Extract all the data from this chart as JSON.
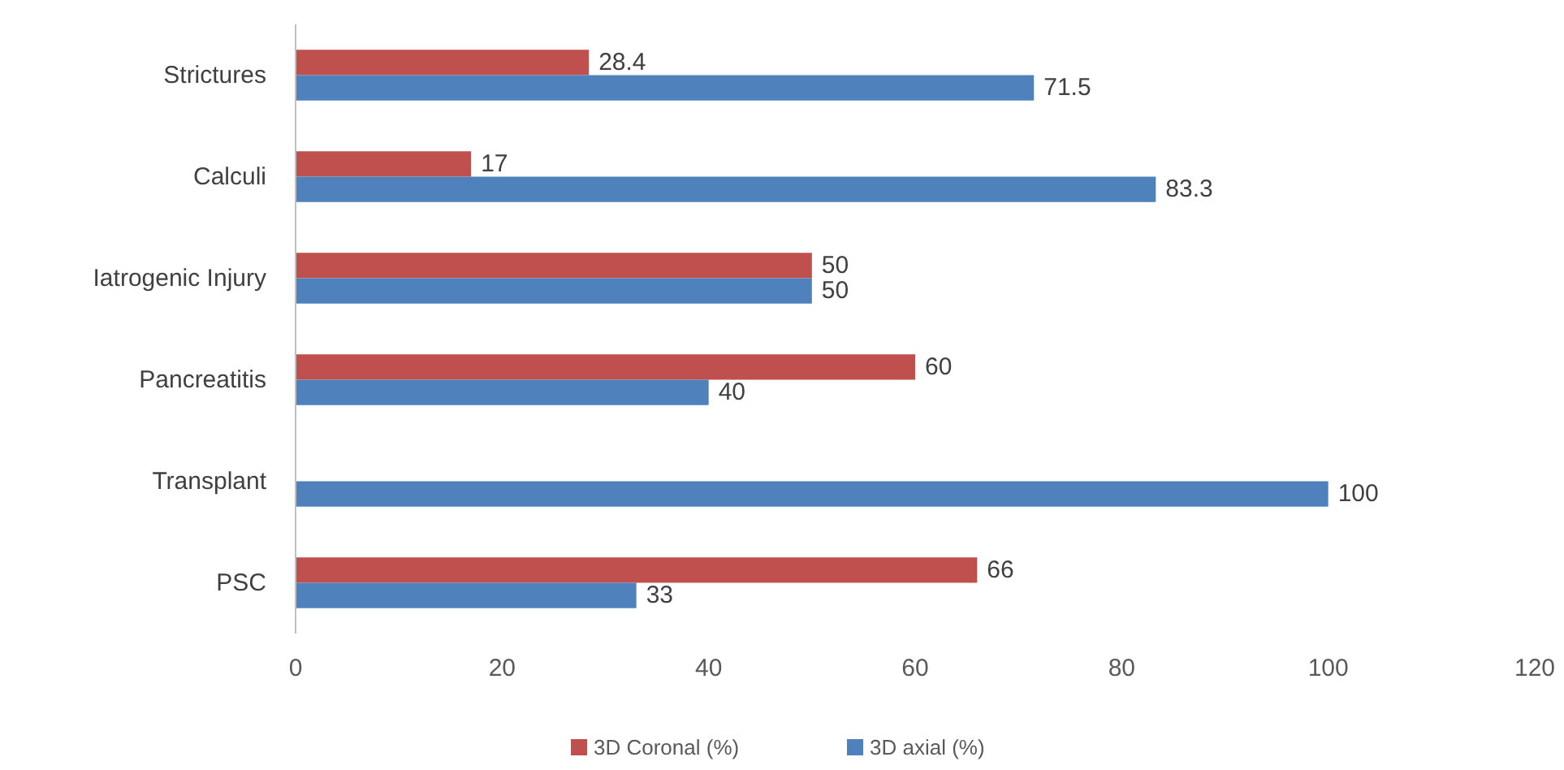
{
  "chart_data": {
    "type": "bar",
    "orientation": "horizontal",
    "categories": [
      "Strictures",
      "Calculi",
      "Iatrogenic Injury",
      "Pancreatitis",
      "Transplant",
      "PSC"
    ],
    "series": [
      {
        "name": "3D Coronal (%)",
        "color": "#c0504d",
        "values": [
          28.4,
          17,
          50,
          60,
          null,
          66
        ]
      },
      {
        "name": "3D axial (%)",
        "color": "#4f81bd",
        "values": [
          71.5,
          83.3,
          50,
          40,
          100,
          33
        ]
      }
    ],
    "xlim": [
      0,
      120
    ],
    "xticks": [
      0,
      20,
      40,
      60,
      80,
      100,
      120
    ],
    "grid": false,
    "legend": "bottom",
    "data_labels": true
  }
}
